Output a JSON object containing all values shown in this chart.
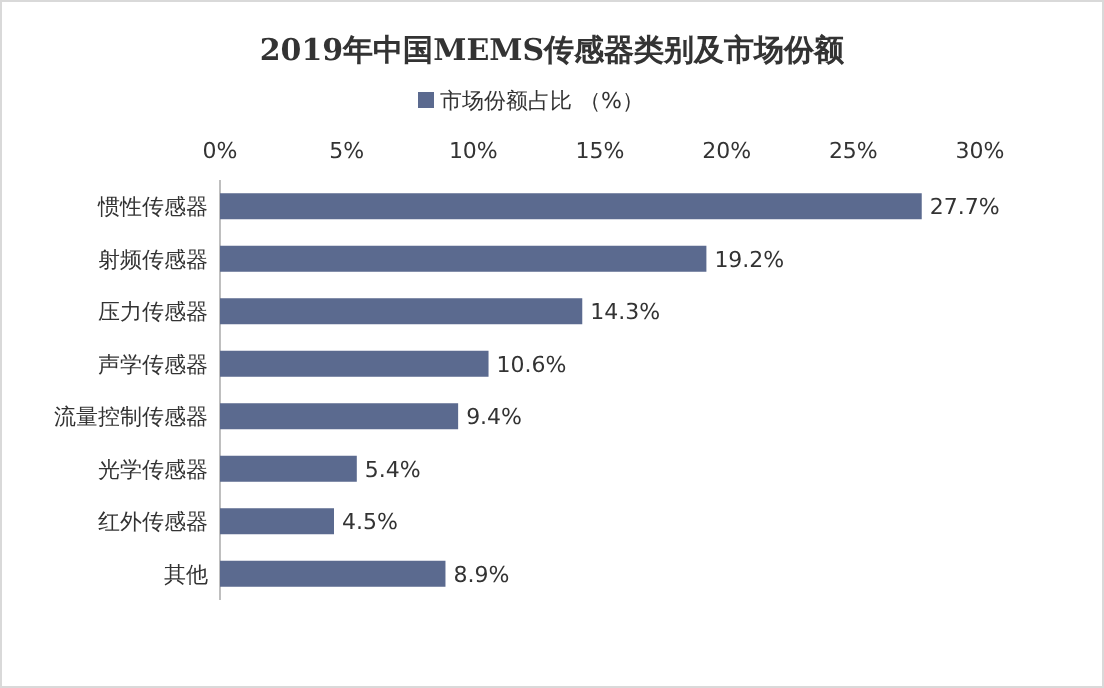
{
  "chart_data": {
    "type": "bar",
    "orientation": "horizontal",
    "title": "2019年中国MEMS传感器类别及市场份额",
    "categories": [
      "惯性传感器",
      "射频传感器",
      "压力传感器",
      "声学传感器",
      "流量控制传感器",
      "光学传感器",
      "红外传感器",
      "其他"
    ],
    "series": [
      {
        "name": "市场份额占比 （%）",
        "color": "#5b6a8f",
        "values": [
          27.7,
          19.2,
          14.3,
          10.6,
          9.4,
          5.4,
          4.5,
          8.9
        ]
      }
    ],
    "value_labels": [
      "27.7%",
      "19.2%",
      "14.3%",
      "10.6%",
      "9.4%",
      "5.4%",
      "4.5%",
      "8.9%"
    ],
    "xlim": [
      0,
      30
    ],
    "xticks": [
      {
        "value": 0,
        "label": "0%"
      },
      {
        "value": 5,
        "label": "5%"
      },
      {
        "value": 10,
        "label": "10%"
      },
      {
        "value": 15,
        "label": "15%"
      },
      {
        "value": 20,
        "label": "20%"
      },
      {
        "value": 25,
        "label": "25%"
      },
      {
        "value": 30,
        "label": "30%"
      }
    ],
    "legend": "top",
    "grid": false
  }
}
